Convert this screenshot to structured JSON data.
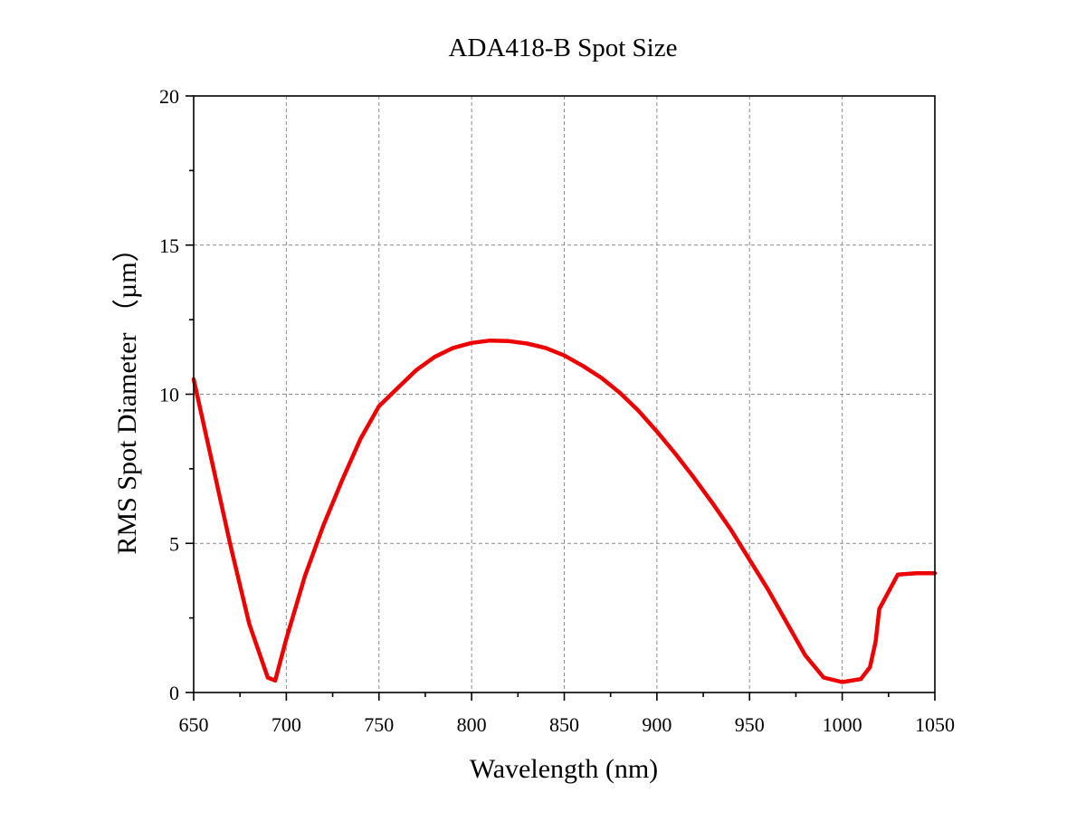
{
  "chart_data": {
    "type": "line",
    "title": "ADA418-B Spot Size",
    "xlabel": "Wavelength (nm)",
    "ylabel": "RMS Spot Diameter （µm）",
    "xlim": [
      650,
      1050
    ],
    "ylim": [
      0,
      20
    ],
    "x_ticks": [
      "650",
      "700",
      "750",
      "800",
      "850",
      "900",
      "950",
      "1000",
      "1050"
    ],
    "y_ticks": [
      "0",
      "5",
      "10",
      "15",
      "20"
    ],
    "x_minor_step": 25,
    "y_minor_step": 2.5,
    "grid": true,
    "series": [
      {
        "color": "#ee0000",
        "x": [
          650,
          660,
          670,
          680,
          690,
          694,
          700,
          710,
          720,
          730,
          740,
          750,
          760,
          770,
          780,
          790,
          800,
          810,
          820,
          830,
          840,
          850,
          860,
          870,
          880,
          890,
          900,
          910,
          920,
          930,
          940,
          950,
          960,
          970,
          980,
          990,
          1000,
          1010,
          1015,
          1018,
          1020,
          1030,
          1040,
          1050
        ],
        "y": [
          10.5,
          7.7,
          4.9,
          2.3,
          0.5,
          0.4,
          1.8,
          3.9,
          5.6,
          7.1,
          8.5,
          9.6,
          10.2,
          10.8,
          11.25,
          11.55,
          11.72,
          11.8,
          11.78,
          11.7,
          11.55,
          11.3,
          10.95,
          10.55,
          10.05,
          9.45,
          8.75,
          8.0,
          7.2,
          6.35,
          5.45,
          4.45,
          3.45,
          2.35,
          1.25,
          0.5,
          0.35,
          0.45,
          0.85,
          1.7,
          2.8,
          3.95,
          4.0,
          4.0
        ]
      }
    ]
  }
}
